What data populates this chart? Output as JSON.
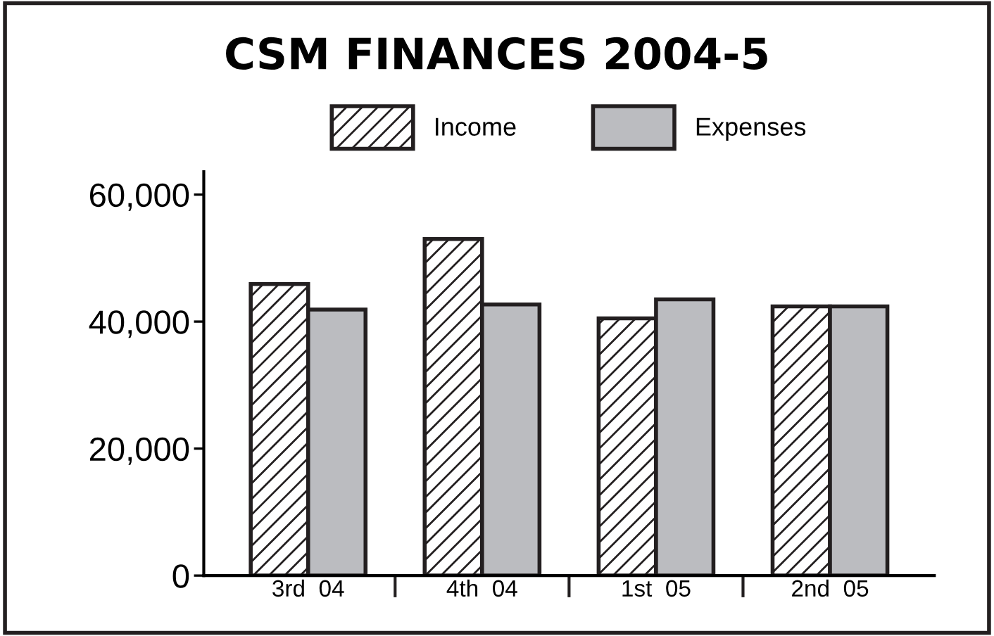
{
  "chart_data": {
    "type": "bar",
    "title": "CSM FINANCES 2004-5",
    "categories": [
      "3rd  04",
      "4th  04",
      "1st  05",
      "2nd  05"
    ],
    "series": [
      {
        "name": "Income",
        "color": "#231f20",
        "values": [
          45900,
          53000,
          40500,
          42400
        ]
      },
      {
        "name": "Expenses",
        "color": "#bbbcc0",
        "values": [
          41900,
          42700,
          43500,
          42400
        ]
      }
    ],
    "ylim": [
      0,
      63600
    ],
    "yticks": [
      {
        "value": 0,
        "label": "0"
      },
      {
        "value": 20000,
        "label": "20,000"
      },
      {
        "value": 40000,
        "label": "40,000"
      },
      {
        "value": 60000,
        "label": "60,000"
      }
    ],
    "grid": false,
    "legend": "top"
  }
}
